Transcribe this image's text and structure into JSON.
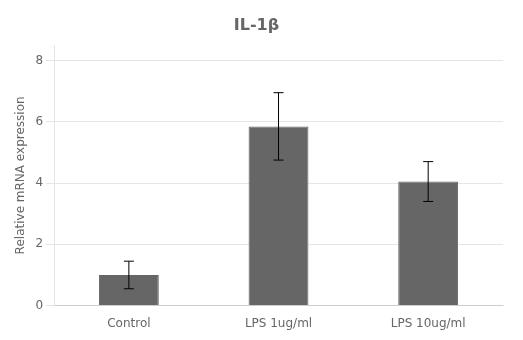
{
  "chart_data": {
    "type": "bar",
    "title": "IL-1β",
    "categories": [
      "Control",
      "LPS 1ug/ml",
      "LPS 10ug/ml"
    ],
    "values": [
      1.0,
      5.85,
      4.05
    ],
    "errors": [
      0.45,
      1.1,
      0.65
    ],
    "color": "#666666",
    "ylabel": "Relative mRNA expression",
    "ylim": [
      0,
      8.5
    ],
    "yticks": [
      0,
      2,
      4,
      6,
      8
    ],
    "grid": true
  }
}
